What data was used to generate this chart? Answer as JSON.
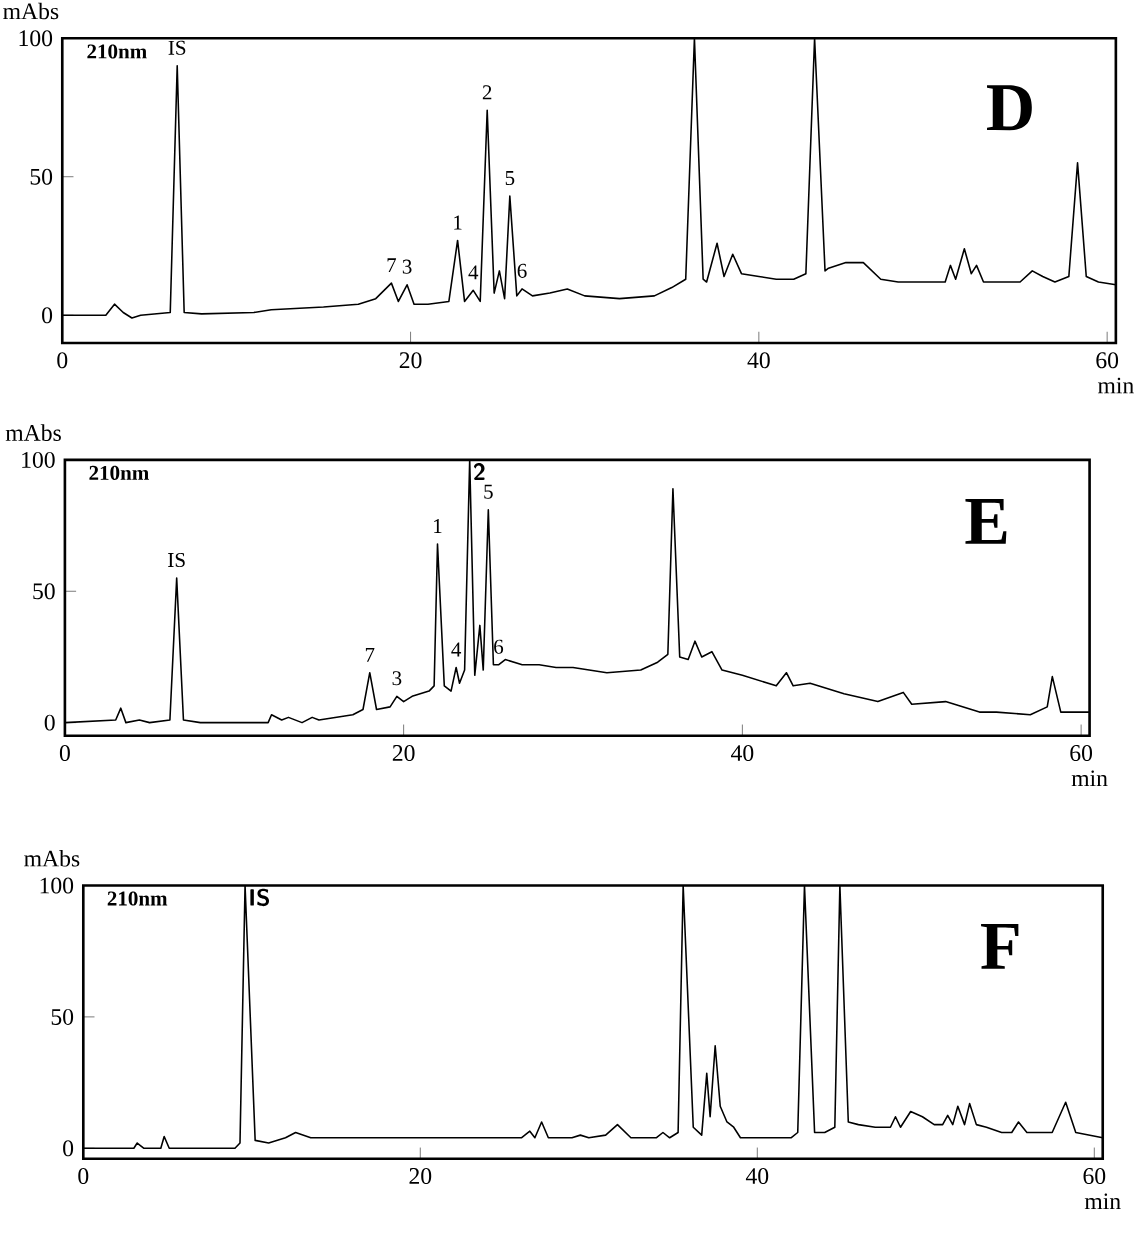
{
  "chart_data": [
    {
      "type": "line",
      "title": "D",
      "xlabel": "min",
      "ylabel": "mAbs",
      "color": "#000000",
      "xlim": [
        0,
        60.5
      ],
      "ylim": [
        -10,
        100
      ],
      "xticks": [
        0,
        20,
        40,
        60
      ],
      "yticks": [
        0,
        50,
        100
      ],
      "x": [
        0,
        2.5,
        3,
        3.5,
        4,
        4.5,
        6.2,
        6.6,
        7.0,
        8,
        11,
        12,
        15,
        17,
        18,
        18.9,
        19.3,
        19.8,
        20.2,
        21,
        22.2,
        22.7,
        23.1,
        23.6,
        24,
        24.4,
        24.8,
        25.1,
        25.4,
        25.7,
        26.1,
        26.4,
        27,
        28,
        29,
        30,
        32,
        34,
        35,
        35.8,
        36.3,
        36.8,
        37,
        37.6,
        38,
        38.5,
        39,
        40,
        41,
        42,
        42.7,
        43.2,
        43.8,
        44,
        45,
        46,
        46.5,
        47,
        48,
        49,
        50,
        50.7,
        51,
        51.3,
        51.8,
        52.2,
        52.5,
        52.9,
        54,
        55,
        55.7,
        56.3,
        57,
        57.8,
        58.3,
        58.8,
        59.5,
        60.5
      ],
      "values": [
        0,
        0,
        4,
        1,
        -1,
        0,
        1,
        90,
        1,
        0.5,
        1,
        2,
        3,
        4,
        6,
        11.6,
        5,
        11,
        4,
        4,
        5,
        27,
        5,
        9,
        5,
        74,
        8,
        16,
        6,
        43,
        7,
        9.5,
        7,
        8,
        9.5,
        7,
        6,
        7,
        10,
        13,
        100,
        13,
        12,
        26,
        14,
        22,
        15,
        14,
        13,
        13,
        15,
        100,
        16,
        17,
        19,
        19,
        16,
        13,
        12,
        12,
        12,
        12,
        18,
        13,
        24,
        15,
        18,
        12,
        12,
        12,
        16,
        14,
        12,
        14,
        55,
        14,
        12,
        11
      ],
      "annotations": [
        "210nm",
        {
          "text": "IS",
          "x": 6.6,
          "y": 90
        },
        {
          "text": "7",
          "x": 18.9,
          "y": 11.6
        },
        {
          "text": "3",
          "x": 19.8,
          "y": 11
        },
        {
          "text": "1",
          "x": 22.7,
          "y": 27
        },
        {
          "text": "4",
          "x": 23.6,
          "y": 9
        },
        {
          "text": "2",
          "x": 24.4,
          "y": 74
        },
        {
          "text": "5",
          "x": 25.7,
          "y": 43
        },
        {
          "text": "6",
          "x": 26.4,
          "y": 9.5
        }
      ]
    },
    {
      "type": "line",
      "title": "E",
      "xlabel": "min",
      "ylabel": "mAbs",
      "color": "#000000",
      "xlim": [
        0,
        60.5
      ],
      "ylim": [
        -5,
        100
      ],
      "xticks": [
        0,
        20,
        40,
        60
      ],
      "yticks": [
        0,
        50,
        100
      ],
      "x": [
        0,
        3,
        3.3,
        3.6,
        4.4,
        5,
        6.2,
        6.6,
        7,
        8,
        12,
        12.2,
        12.8,
        13.2,
        14,
        14.6,
        15,
        17,
        17.6,
        18.0,
        18.4,
        19.2,
        19.6,
        20,
        20.5,
        21,
        21.5,
        21.8,
        22.0,
        22.4,
        22.8,
        23.1,
        23.3,
        23.6,
        23.9,
        24.2,
        24.5,
        24.7,
        25.0,
        25.3,
        25.6,
        26,
        27,
        28,
        29,
        30,
        32,
        34,
        35,
        35.6,
        35.9,
        36.3,
        36.8,
        37.2,
        37.6,
        38.2,
        38.8,
        40,
        42,
        42.6,
        43,
        44,
        46,
        48,
        49.5,
        50,
        52,
        53,
        54,
        55,
        57,
        58,
        58.3,
        58.8,
        60.5
      ],
      "values": [
        0,
        1,
        5.5,
        0,
        1,
        0,
        1,
        55,
        1,
        0,
        0,
        3,
        1,
        2,
        0,
        2,
        1,
        3,
        5,
        19,
        5,
        6,
        10,
        8,
        10,
        11,
        12,
        14,
        68,
        14,
        12,
        21,
        15,
        20,
        100,
        18,
        37,
        20,
        81,
        22,
        22,
        24,
        22,
        22,
        21,
        21,
        19,
        20,
        23,
        26,
        89,
        25,
        24,
        31,
        25,
        27,
        20,
        18,
        14,
        19,
        14,
        15,
        11,
        8,
        11.5,
        7,
        8,
        6,
        4,
        4,
        3,
        6,
        17.5,
        4,
        4
      ],
      "annotations": [
        "210nm",
        {
          "text": "IS",
          "x": 6.6,
          "y": 55
        },
        {
          "text": "7",
          "x": 18.0,
          "y": 19
        },
        {
          "text": "3",
          "x": 19.6,
          "y": 10
        },
        {
          "text": "1",
          "x": 22.0,
          "y": 68
        },
        {
          "text": "4",
          "x": 23.1,
          "y": 21
        },
        {
          "text": "2",
          "x": 23.9,
          "y": 100
        },
        {
          "text": "5",
          "x": 25.0,
          "y": 81
        },
        {
          "text": "6",
          "x": 25.6,
          "y": 22
        }
      ]
    },
    {
      "type": "line",
      "title": "F",
      "xlabel": "min",
      "ylabel": "mAbs",
      "color": "#000000",
      "xlim": [
        0,
        60.5
      ],
      "ylim": [
        -4,
        100
      ],
      "xticks": [
        0,
        20,
        40,
        60
      ],
      "yticks": [
        0,
        50,
        100
      ],
      "x": [
        0,
        3,
        3.2,
        3.6,
        4.6,
        4.8,
        5.1,
        9,
        9.3,
        9.6,
        10.2,
        11,
        12,
        12.6,
        13.5,
        15,
        20,
        24,
        26,
        26.5,
        26.8,
        27.2,
        27.6,
        29,
        29.5,
        30,
        31,
        31.7,
        32.5,
        34,
        34.4,
        34.8,
        35.3,
        35.6,
        36.2,
        36.7,
        37.0,
        37.2,
        37.5,
        37.8,
        38.2,
        38.6,
        39,
        40,
        42,
        42.4,
        42.8,
        43.4,
        44,
        44.6,
        44.9,
        45.4,
        46,
        47,
        47.9,
        48.2,
        48.5,
        49.1,
        49.8,
        50.5,
        51.0,
        51.3,
        51.6,
        51.9,
        52.3,
        52.6,
        53,
        53.6,
        54.5,
        55.1,
        55.5,
        56,
        57.5,
        58.3,
        58.9,
        60.5
      ],
      "values": [
        0,
        0,
        2,
        0,
        0,
        4.5,
        0,
        0,
        2,
        100,
        3,
        2,
        4,
        6,
        4,
        4,
        4,
        4,
        4,
        6.5,
        4,
        10,
        4,
        4,
        5,
        4,
        5,
        9,
        4,
        4,
        6,
        4,
        6,
        100,
        8,
        5,
        28.5,
        12,
        39,
        16,
        10,
        8,
        4,
        4,
        4,
        6,
        100,
        6,
        6,
        8,
        100,
        10,
        9,
        8,
        8,
        12,
        8,
        14,
        12,
        9,
        9,
        12.5,
        9,
        16,
        9,
        17,
        9,
        8,
        6,
        6,
        10,
        6,
        6,
        17.5,
        6,
        4
      ],
      "annotations": [
        "210nm",
        {
          "text": "IS",
          "x": 9.6,
          "y": 100
        }
      ]
    }
  ]
}
